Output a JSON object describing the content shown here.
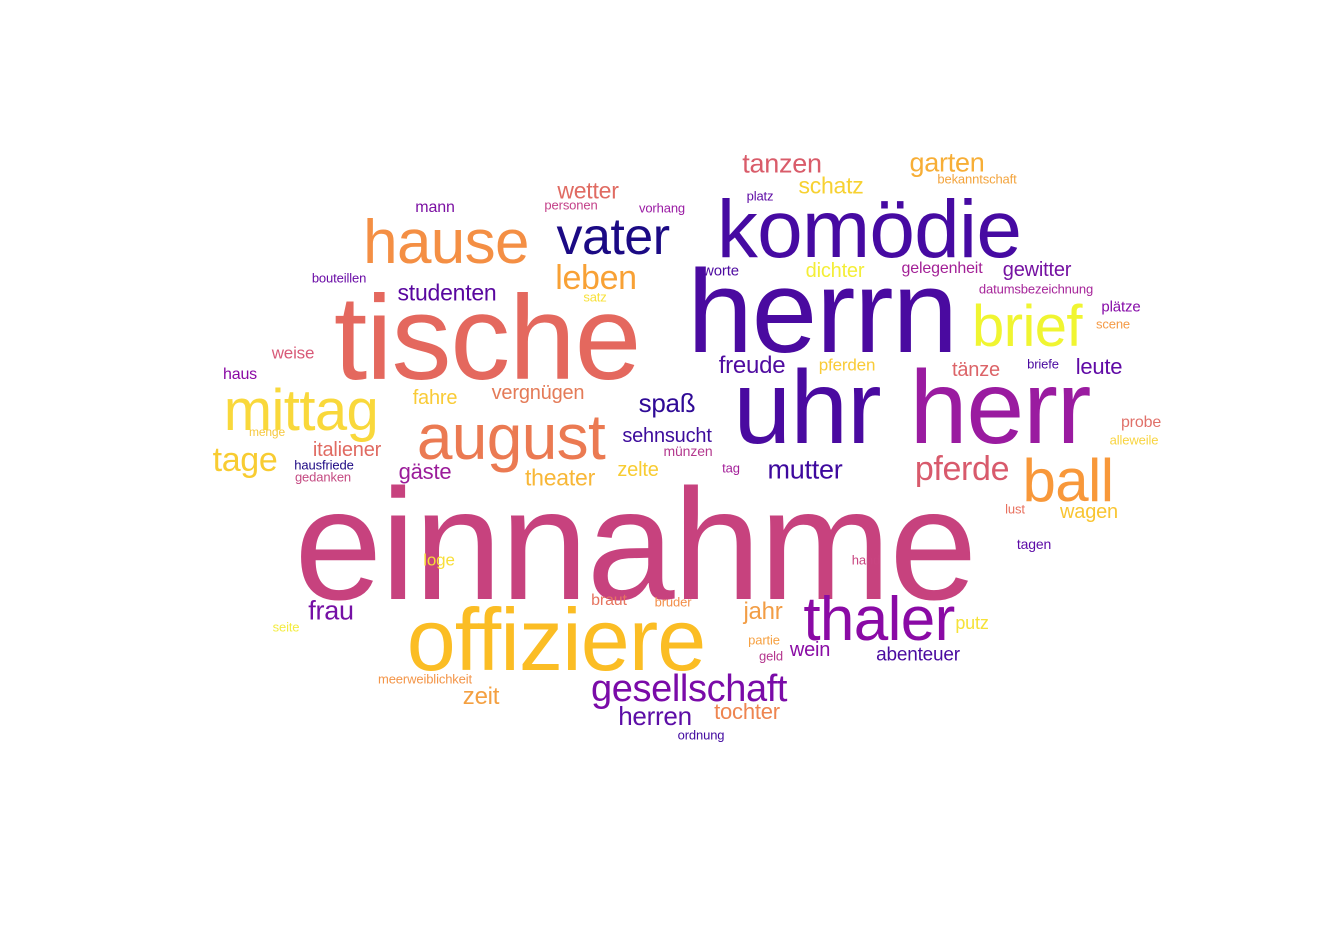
{
  "words": [
    {
      "text": "einnahme",
      "color": "#c7427e"
    },
    {
      "text": "herrn",
      "color": "#4a0aa0"
    },
    {
      "text": "tische",
      "color": "#e4685e"
    },
    {
      "text": "uhr",
      "color": "#4a0aa0"
    },
    {
      "text": "herr",
      "color": "#9a1ba0"
    },
    {
      "text": "offiziere",
      "color": "#fbbd24"
    },
    {
      "text": "komödie",
      "color": "#460aa2"
    },
    {
      "text": "august",
      "color": "#eb7a52"
    },
    {
      "text": "hause",
      "color": "#f48f44"
    },
    {
      "text": "thaler",
      "color": "#8a0aa5"
    },
    {
      "text": "mittag",
      "color": "#f9d83b"
    },
    {
      "text": "brief",
      "color": "#f0f531"
    },
    {
      "text": "ball",
      "color": "#f8983a"
    },
    {
      "text": "vater",
      "color": "#1b0a84"
    },
    {
      "text": "gesellschaft",
      "color": "#7a0ba8"
    },
    {
      "text": "tage",
      "color": "#f8cc32"
    },
    {
      "text": "pferde",
      "color": "#d85a6c"
    },
    {
      "text": "leben",
      "color": "#f8a135"
    },
    {
      "text": "tanzen",
      "color": "#d95c6a"
    },
    {
      "text": "garten",
      "color": "#f7ae36"
    },
    {
      "text": "mutter",
      "color": "#3e099e"
    },
    {
      "text": "frau",
      "color": "#7510a5"
    },
    {
      "text": "herren",
      "color": "#5c0da6"
    },
    {
      "text": "studenten",
      "color": "#59079f"
    },
    {
      "text": "wetter",
      "color": "#e06b62"
    },
    {
      "text": "schatz",
      "color": "#f7d131"
    },
    {
      "text": "spaß",
      "color": "#2f0a96"
    },
    {
      "text": "freude",
      "color": "#4f0ba0"
    },
    {
      "text": "jahr",
      "color": "#f29d45"
    },
    {
      "text": "leute",
      "color": "#600aa6"
    },
    {
      "text": "zeit",
      "color": "#f4a041"
    },
    {
      "text": "theater",
      "color": "#f8b737"
    },
    {
      "text": "gäste",
      "color": "#9b1c9a"
    },
    {
      "text": "tochter",
      "color": "#ee8550"
    },
    {
      "text": "wagen",
      "color": "#f9c532"
    },
    {
      "text": "sehnsucht",
      "color": "#3d0c9c"
    },
    {
      "text": "gewitter",
      "color": "#7512a2"
    },
    {
      "text": "italiener",
      "color": "#e06b62"
    },
    {
      "text": "vergnügen",
      "color": "#e47b58"
    },
    {
      "text": "dichter",
      "color": "#f4ee38"
    },
    {
      "text": "tänze",
      "color": "#dc6468"
    },
    {
      "text": "wein",
      "color": "#8a0da5"
    },
    {
      "text": "abenteuer",
      "color": "#4a0ba0"
    },
    {
      "text": "zelte",
      "color": "#f8cc32"
    },
    {
      "text": "fahre",
      "color": "#f9cb37"
    },
    {
      "text": "pferden",
      "color": "#f9cb37"
    },
    {
      "text": "weise",
      "color": "#d85a78"
    },
    {
      "text": "braut",
      "color": "#e67460"
    },
    {
      "text": "putz",
      "color": "#f6e238"
    },
    {
      "text": "loge",
      "color": "#f8de38"
    },
    {
      "text": "haus",
      "color": "#8a0aa5"
    },
    {
      "text": "gelegenheit",
      "color": "#a21f96"
    },
    {
      "text": "mann",
      "color": "#7c11a3"
    },
    {
      "text": "probe",
      "color": "#e0716a"
    },
    {
      "text": "worte",
      "color": "#4d0aa0"
    },
    {
      "text": "plätze",
      "color": "#860ba8"
    },
    {
      "text": "tagen",
      "color": "#5c0aa6"
    },
    {
      "text": "münzen",
      "color": "#b43a8f"
    },
    {
      "text": "bouteillen",
      "color": "#6a0ca6"
    },
    {
      "text": "hausfriede",
      "color": "#1e0a84"
    },
    {
      "text": "gedanken",
      "color": "#c44a82"
    },
    {
      "text": "datumsbezeichnung",
      "color": "#a6259a"
    },
    {
      "text": "platz",
      "color": "#5d0aa4"
    },
    {
      "text": "personen",
      "color": "#c33f88"
    },
    {
      "text": "vorhang",
      "color": "#9a1ba4"
    },
    {
      "text": "bekanntschaft",
      "color": "#f3a43d"
    },
    {
      "text": "satz",
      "color": "#f8e13a"
    },
    {
      "text": "scene",
      "color": "#f49a46"
    },
    {
      "text": "briefe",
      "color": "#4a0aa0"
    },
    {
      "text": "tag",
      "color": "#a31f99"
    },
    {
      "text": "lust",
      "color": "#e8705e"
    },
    {
      "text": "hand",
      "color": "#c84480"
    },
    {
      "text": "bruder",
      "color": "#f38f4a"
    },
    {
      "text": "partie",
      "color": "#f6a142"
    },
    {
      "text": "geld",
      "color": "#b4368e"
    },
    {
      "text": "meerweiblichkeit",
      "color": "#f39548"
    },
    {
      "text": "ordnung",
      "color": "#420aa0"
    },
    {
      "text": "menge",
      "color": "#f6c83e"
    },
    {
      "text": "seite",
      "color": "#f3ec40"
    },
    {
      "text": "alleweile",
      "color": "#f8d440"
    }
  ]
}
